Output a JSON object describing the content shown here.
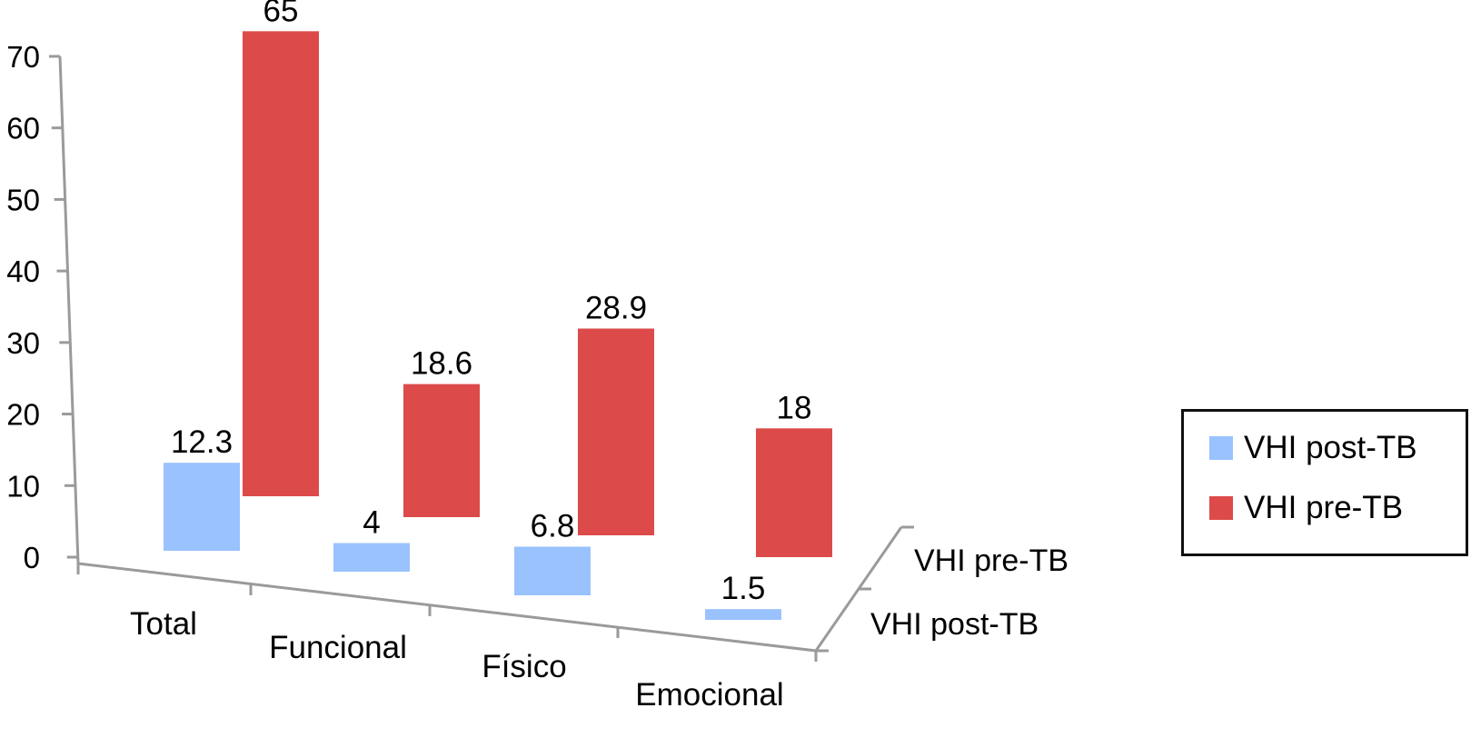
{
  "chart_data": {
    "type": "bar",
    "title": "",
    "xlabel": "",
    "ylabel": "",
    "ylim": [
      0,
      70
    ],
    "yticks": [
      "0",
      "10",
      "20",
      "30",
      "40",
      "50",
      "60",
      "70"
    ],
    "categories": [
      "Total",
      "Funcional",
      "Físico",
      "Emocional"
    ],
    "depth_labels": [
      "VHI pre-TB",
      "VHI post-TB"
    ],
    "series": [
      {
        "name": "VHI post-TB",
        "color": "#99c2ff",
        "values": [
          12.3,
          4,
          6.8,
          1.5
        ],
        "labels": [
          "12.3",
          "4",
          "6.8",
          "1.5"
        ]
      },
      {
        "name": "VHI pre-TB",
        "color": "#dd4a4a",
        "values": [
          65,
          18.6,
          28.9,
          18
        ],
        "labels": [
          "65",
          "18.6",
          "28.9",
          "18"
        ]
      }
    ],
    "legend_position": "right",
    "grid": false,
    "three_d": true
  }
}
